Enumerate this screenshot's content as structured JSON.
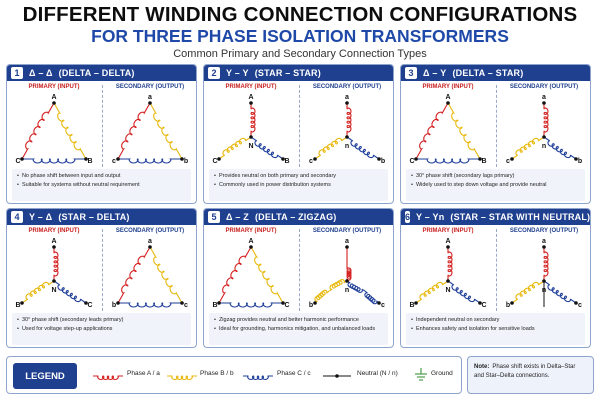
{
  "title": {
    "line1": "DIFFERENT WINDING CONNECTION CONFIGURATIONS",
    "line2": "FOR THREE PHASE ISOLATION TRANSFORMERS",
    "subtitle": "Common Primary and Secondary Connection Types"
  },
  "colors": {
    "phase_a": "#d42020",
    "phase_b": "#e8b80c",
    "phase_c": "#1f3f9a",
    "neutral": "#111111",
    "ground": "#2a8a2a",
    "header": "#1f3f8f"
  },
  "labels": {
    "primary": "PRIMARY (INPUT)",
    "secondary": "SECONDARY (OUTPUT)"
  },
  "panels": [
    {
      "num": "1",
      "code": "Δ – Δ",
      "name": "(DELTA – DELTA)",
      "pri": "delta",
      "sec": "delta",
      "pri_nodes": {
        "top": "A",
        "left": "C",
        "right": "B"
      },
      "sec_nodes": {
        "top": "a",
        "left": "c",
        "right": "b"
      },
      "notes": [
        "No phase shift between input and output",
        "Suitable for systems without neutral requirement"
      ]
    },
    {
      "num": "2",
      "code": "Y – Y",
      "name": "(STAR – STAR)",
      "pri": "star",
      "sec": "star",
      "pri_nodes": {
        "top": "A",
        "left": "C",
        "right": "B",
        "center": "N"
      },
      "sec_nodes": {
        "top": "a",
        "left": "c",
        "right": "b",
        "center": "n"
      },
      "notes": [
        "Provides neutral on both primary and secondary",
        "Commonly used in power distribution systems"
      ]
    },
    {
      "num": "3",
      "code": "Δ – Y",
      "name": "(DELTA – STAR)",
      "pri": "delta",
      "sec": "star",
      "pri_nodes": {
        "top": "A",
        "left": "C",
        "right": "B"
      },
      "sec_nodes": {
        "top": "a",
        "left": "c",
        "right": "b",
        "center": "n"
      },
      "notes": [
        "30° phase shift (secondary lags primary)",
        "Widely used to step down voltage and provide neutral"
      ]
    },
    {
      "num": "4",
      "code": "Y – Δ",
      "name": "(STAR – DELTA)",
      "pri": "star",
      "sec": "delta",
      "pri_nodes": {
        "top": "A",
        "left": "B",
        "right": "C",
        "center": "N"
      },
      "sec_nodes": {
        "top": "a",
        "left": "b",
        "right": "c"
      },
      "notes": [
        "30° phase shift (secondary leads primary)",
        "Used for voltage step-up applications"
      ]
    },
    {
      "num": "5",
      "code": "Δ – Z",
      "name": "(DELTA – ZIGZAG)",
      "pri": "delta",
      "sec": "zigzag",
      "pri_nodes": {
        "top": "A",
        "left": "B",
        "right": "C"
      },
      "sec_nodes": {
        "top": "a",
        "left": "b",
        "right": "c",
        "center": "n"
      },
      "notes": [
        "Zigzag provides neutral and better harmonic performance",
        "Ideal for grounding, harmonics mitigation, and unbalanced loads"
      ]
    },
    {
      "num": "6",
      "code": "Y – Yn",
      "name": "(STAR – STAR WITH NEUTRAL)",
      "pri": "star",
      "sec": "starn",
      "pri_nodes": {
        "top": "A",
        "left": "B",
        "right": "C",
        "center": "N"
      },
      "sec_nodes": {
        "top": "a",
        "left": "b",
        "right": "c",
        "center": "n"
      },
      "notes": [
        "Independent neutral on secondary",
        "Enhances safety and isolation for sensitive loads"
      ]
    }
  ],
  "legend": {
    "title": "LEGEND",
    "items": [
      {
        "label": "Phase A / a",
        "icon": "coil-red-icon"
      },
      {
        "label": "Phase B / b",
        "icon": "coil-yellow-icon"
      },
      {
        "label": "Phase C / c",
        "icon": "coil-blue-icon"
      },
      {
        "label": "Neutral (N / n)",
        "icon": "neutral-line-icon"
      },
      {
        "label": "Ground",
        "icon": "ground-icon"
      }
    ]
  },
  "note": {
    "label": "Note:",
    "line1": "Phase shift exists in Delta–Star",
    "line2": "and Star–Delta connections."
  }
}
